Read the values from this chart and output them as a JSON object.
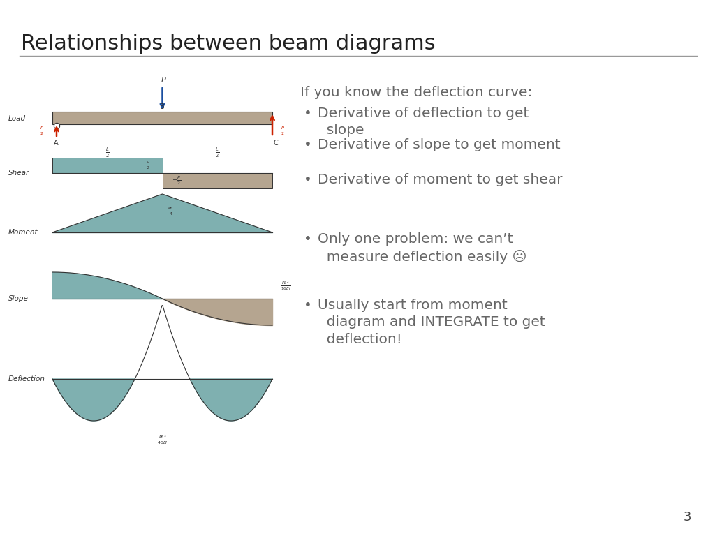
{
  "title": "Relationships between beam diagrams",
  "title_fontsize": 22,
  "title_color": "#222222",
  "background_color": "#ffffff",
  "separator_color": "#999999",
  "text_color": "#666666",
  "text_fontsize": 14.5,
  "intro_text": "If you know the deflection curve:",
  "bullets_top": [
    "Derivative of deflection to get\n  slope",
    "Derivative of slope to get moment",
    "Derivative of moment to get shear"
  ],
  "bullets_bottom": [
    "Only one problem: we can’t\n  measure deflection easily ☹",
    "Usually start from moment\n  diagram and INTEGRATE to get\n  deflection!"
  ],
  "page_number": "3",
  "beam_color": "#b5a590",
  "shear_teal_color": "#7fb0b0",
  "shear_tan_color": "#b5a590",
  "moment_color": "#7fb0b0",
  "slope_pos_color": "#7fb0b0",
  "slope_neg_color": "#b5a590",
  "deflection_color": "#7fb0b0",
  "line_color": "#333333",
  "red_color": "#cc2200",
  "blue_color": "#1a4fa0"
}
